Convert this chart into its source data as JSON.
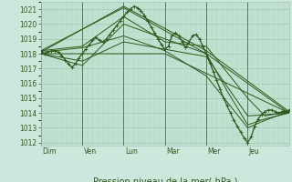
{
  "title": "",
  "xlabel": "Pression niveau de la mer( hPa )",
  "bg_color": "#cce8dc",
  "plot_bg_color": "#c0e0d0",
  "line_color": "#2d5a1b",
  "grid_major_color": "#a0c8b4",
  "grid_minor_color": "#b4d4c4",
  "tick_label_color": "#2d5a1b",
  "ylim": [
    1011.8,
    1021.5
  ],
  "yticks": [
    1012,
    1013,
    1014,
    1015,
    1016,
    1017,
    1018,
    1019,
    1020,
    1021
  ],
  "day_labels": [
    "Dim",
    "Ven",
    "Lun",
    "Mar",
    "Mer",
    "Jeu"
  ],
  "day_positions": [
    0,
    48,
    96,
    144,
    192,
    240
  ],
  "xlim": [
    0,
    288
  ],
  "series": [
    [
      0,
      1018.1,
      4,
      1018.0,
      8,
      1018.1,
      12,
      1018.2,
      16,
      1018.2,
      20,
      1018.1,
      24,
      1017.9,
      28,
      1017.6,
      32,
      1017.3,
      36,
      1017.1,
      40,
      1017.3,
      44,
      1017.7,
      48,
      1018.0,
      52,
      1018.3,
      56,
      1018.6,
      60,
      1018.9,
      64,
      1019.1,
      68,
      1018.9,
      72,
      1018.8,
      76,
      1019.0,
      80,
      1019.3,
      84,
      1019.6,
      88,
      1019.9,
      92,
      1020.2,
      96,
      1020.5,
      100,
      1020.8,
      104,
      1021.0,
      108,
      1021.2,
      112,
      1021.1,
      116,
      1020.9,
      120,
      1020.6,
      124,
      1020.2,
      128,
      1019.8,
      132,
      1019.4,
      136,
      1019.0,
      140,
      1018.6,
      144,
      1018.3,
      148,
      1018.5,
      152,
      1019.2,
      156,
      1019.4,
      160,
      1019.2,
      164,
      1018.8,
      168,
      1018.4,
      172,
      1018.8,
      176,
      1019.2,
      180,
      1019.3,
      184,
      1019.0,
      188,
      1018.5,
      192,
      1018.0,
      196,
      1017.4,
      200,
      1016.8,
      204,
      1016.2,
      208,
      1015.6,
      212,
      1015.0,
      216,
      1014.5,
      220,
      1014.0,
      224,
      1013.5,
      228,
      1013.1,
      232,
      1012.7,
      236,
      1012.3,
      240,
      1012.0,
      244,
      1012.4,
      248,
      1013.1,
      252,
      1013.6,
      256,
      1013.9,
      260,
      1014.1,
      264,
      1014.2,
      268,
      1014.2,
      272,
      1014.1,
      276,
      1014.0,
      280,
      1014.1,
      284,
      1014.1,
      288,
      1014.2
    ],
    [
      0,
      1018.2,
      96,
      1021.1,
      192,
      1018.0,
      288,
      1014.0
    ],
    [
      0,
      1018.1,
      96,
      1021.2,
      192,
      1018.2,
      288,
      1014.1
    ],
    [
      0,
      1018.0,
      144,
      1018.0,
      288,
      1014.0
    ],
    [
      0,
      1018.0,
      48,
      1017.5,
      96,
      1018.8,
      144,
      1018.3,
      192,
      1017.8,
      240,
      1013.8,
      288,
      1014.0
    ],
    [
      0,
      1018.1,
      48,
      1018.4,
      96,
      1019.2,
      144,
      1018.2,
      192,
      1016.5,
      240,
      1013.0,
      260,
      1013.5,
      288,
      1014.1
    ],
    [
      0,
      1018.0,
      48,
      1017.2,
      96,
      1020.0,
      144,
      1019.0,
      192,
      1018.0,
      216,
      1015.5,
      240,
      1013.2,
      260,
      1013.6,
      288,
      1014.0
    ],
    [
      0,
      1018.2,
      48,
      1018.5,
      96,
      1020.5,
      144,
      1018.8,
      192,
      1018.5,
      240,
      1015.0,
      260,
      1013.8,
      288,
      1014.1
    ]
  ],
  "linewidth": 0.9,
  "thin_linewidth": 0.7,
  "marker": "+",
  "markersize": 2.5,
  "markeredgewidth": 0.6
}
